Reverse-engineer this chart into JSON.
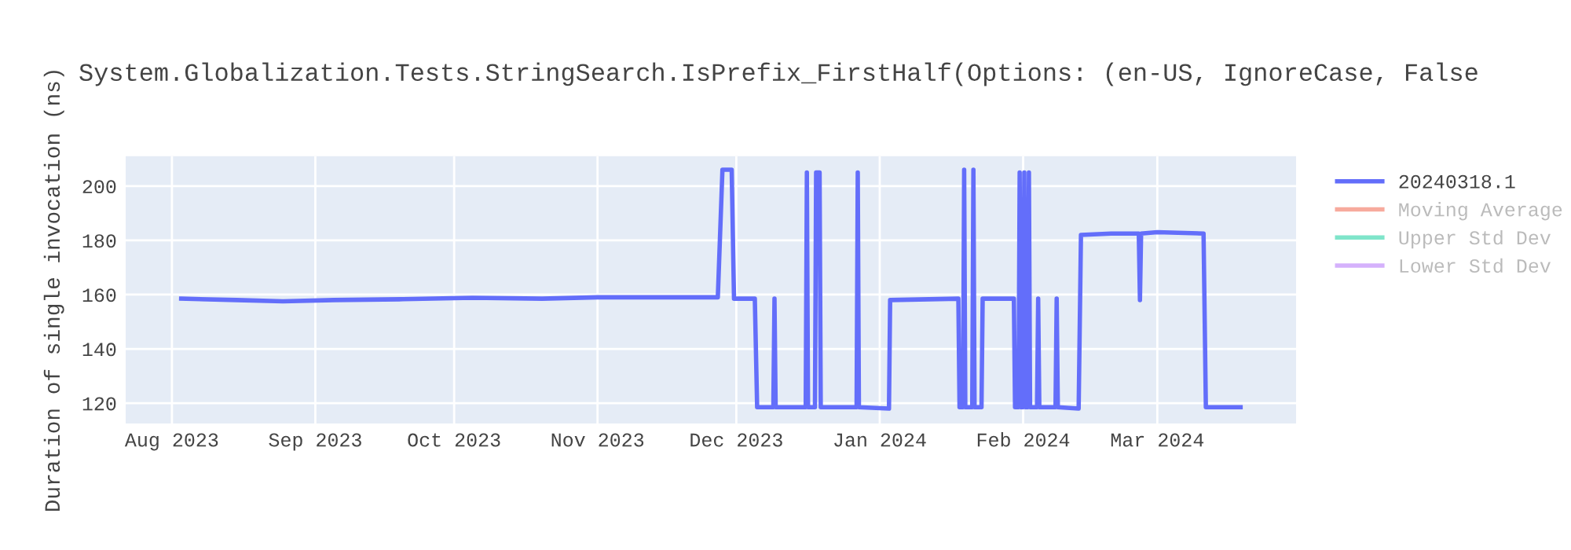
{
  "chart_data": {
    "type": "line",
    "title": "System.Globalization.Tests.StringSearch.IsPrefix_FirstHalf(Options: (en-US, IgnoreCase, False",
    "ylabel": "Duration of single invocation (ns)",
    "xlim": [
      "2023-07-22",
      "2024-03-31"
    ],
    "xticks": [
      {
        "value": "2023-08-01",
        "label": "Aug 2023"
      },
      {
        "value": "2023-09-01",
        "label": "Sep 2023"
      },
      {
        "value": "2023-10-01",
        "label": "Oct 2023"
      },
      {
        "value": "2023-11-01",
        "label": "Nov 2023"
      },
      {
        "value": "2023-12-01",
        "label": "Dec 2023"
      },
      {
        "value": "2024-01-01",
        "label": "Jan 2024"
      },
      {
        "value": "2024-02-01",
        "label": "Feb 2024"
      },
      {
        "value": "2024-03-01",
        "label": "Mar 2024"
      }
    ],
    "ylim": [
      112.5,
      211
    ],
    "yticks": [
      120,
      140,
      160,
      180,
      200
    ],
    "grid": true,
    "legend": "right",
    "line_style": "solid",
    "series": [
      {
        "name": "20240318.1",
        "color": "#636efa",
        "x": [
          "2023-08-03",
          "2023-08-15",
          "2023-08-25",
          "2023-09-05",
          "2023-09-20",
          "2023-10-05",
          "2023-10-20",
          "2023-11-01",
          "2023-11-15",
          "2023-11-27",
          "2023-11-28",
          "2023-11-30",
          "2023-11-30T12:00",
          "2023-12-05",
          "2023-12-05T12:00",
          "2023-12-09",
          "2023-12-09T06:00",
          "2023-12-09T12:00",
          "2023-12-16",
          "2023-12-16T06:00",
          "2023-12-16T12:00",
          "2023-12-18",
          "2023-12-18T06:00",
          "2023-12-19",
          "2023-12-19T06:00",
          "2023-12-27",
          "2023-12-27T06:00",
          "2023-12-27T12:00",
          "2024-01-03",
          "2024-01-03T06:00",
          "2024-01-18",
          "2024-01-18T06:00",
          "2024-01-19",
          "2024-01-19T06:00",
          "2024-01-19T12:00",
          "2024-01-21",
          "2024-01-21T06:00",
          "2024-01-21T12:00",
          "2024-01-23",
          "2024-01-23T06:00",
          "2024-01-30",
          "2024-01-30T06:00",
          "2024-01-31",
          "2024-01-31T06:00",
          "2024-01-31T12:00",
          "2024-02-01",
          "2024-02-01T06:00",
          "2024-02-01T12:00",
          "2024-02-02",
          "2024-02-02T06:00",
          "2024-02-02T12:00",
          "2024-02-04",
          "2024-02-04T06:00",
          "2024-02-04T12:00",
          "2024-02-08",
          "2024-02-08T06:00",
          "2024-02-08T12:00",
          "2024-02-13",
          "2024-02-13T12:00",
          "2024-02-20",
          "2024-02-26",
          "2024-02-26T06:00",
          "2024-02-26T12:00",
          "2024-03-01",
          "2024-03-11",
          "2024-03-11T12:00",
          "2024-03-19"
        ],
        "values": [
          158.5,
          158,
          157.5,
          158,
          158.3,
          158.8,
          158.5,
          159,
          159,
          159,
          206,
          206,
          158.5,
          158.5,
          118.5,
          118.5,
          158.5,
          118.5,
          118.5,
          205,
          118.5,
          118.5,
          205,
          205,
          118.5,
          118.5,
          205,
          118.5,
          118,
          158,
          158.5,
          118.5,
          118.5,
          206,
          118.5,
          118.5,
          206,
          118.5,
          118.5,
          158.5,
          158.5,
          118.5,
          118.5,
          205,
          118.5,
          118.5,
          205,
          118.5,
          118.5,
          205,
          118.5,
          118.5,
          158.5,
          118.5,
          118.5,
          158.5,
          118.5,
          118,
          182,
          182.5,
          182.5,
          158,
          182.5,
          183,
          182.5,
          118.5,
          118.5
        ]
      },
      {
        "name": "Moving Average",
        "color": "#ef553b"
      },
      {
        "name": "Upper Std Dev",
        "color": "#00cc96"
      },
      {
        "name": "Lower Std Dev",
        "color": "#ab63fa"
      }
    ]
  }
}
